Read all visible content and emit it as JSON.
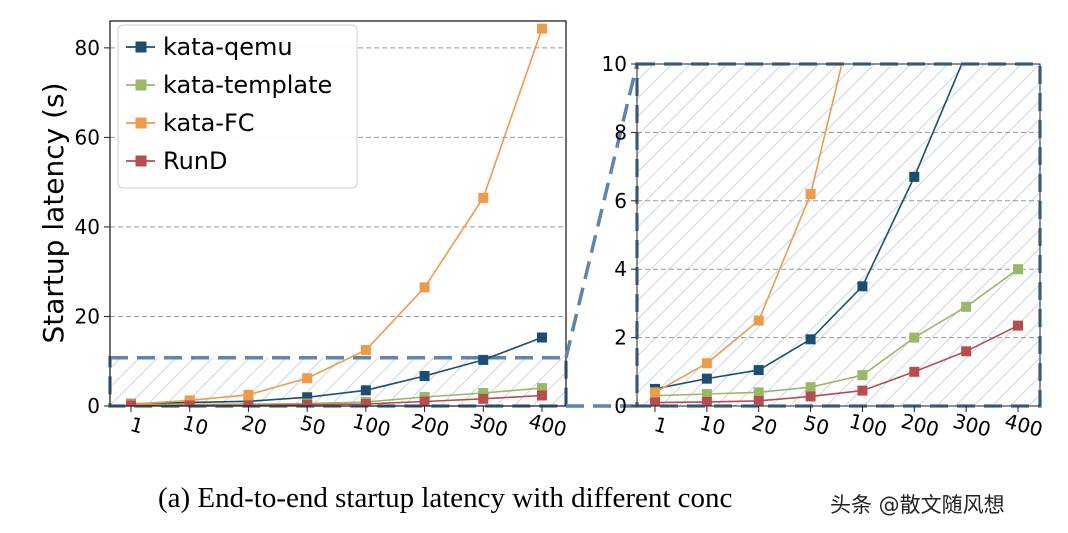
{
  "chart_data": [
    {
      "type": "line",
      "title": "",
      "xlabel": "",
      "ylabel": "Startup latency (s)",
      "categories": [
        "1",
        "10",
        "20",
        "50",
        "100",
        "200",
        "300",
        "400"
      ],
      "ylim": [
        0,
        86
      ],
      "yticks": [
        0,
        20,
        40,
        60,
        80
      ],
      "grid": "horizontal dashed",
      "legend": "top-left",
      "highlight_region": [
        0,
        11
      ],
      "series": [
        {
          "name": "kata-qemu",
          "color": "#1b4e72",
          "values": [
            0.5,
            0.8,
            1.05,
            1.95,
            3.5,
            6.7,
            10.3,
            15.3
          ]
        },
        {
          "name": "kata-template",
          "color": "#9ab866",
          "values": [
            0.3,
            0.35,
            0.4,
            0.55,
            0.9,
            2.0,
            2.9,
            4.0
          ]
        },
        {
          "name": "kata-FC",
          "color": "#ee9b4b",
          "values": [
            0.4,
            1.25,
            2.5,
            6.2,
            12.5,
            26.5,
            46.5,
            84.3
          ]
        },
        {
          "name": "RunD",
          "color": "#b74d4f",
          "values": [
            0.1,
            0.12,
            0.15,
            0.28,
            0.45,
            1.0,
            1.6,
            2.35
          ]
        }
      ]
    },
    {
      "type": "line",
      "title": "",
      "xlabel": "",
      "ylabel": "",
      "categories": [
        "1",
        "10",
        "20",
        "50",
        "100",
        "200",
        "300",
        "400"
      ],
      "ylim": [
        0,
        10
      ],
      "yticks": [
        0,
        2,
        4,
        6,
        8,
        10
      ],
      "grid": "horizontal dashed",
      "legend": "none",
      "series_ref": "same as left panel, zoomed"
    }
  ],
  "caption": "(a)  End-to-end startup latency with different conc",
  "watermark": "头条 @散文随风想"
}
